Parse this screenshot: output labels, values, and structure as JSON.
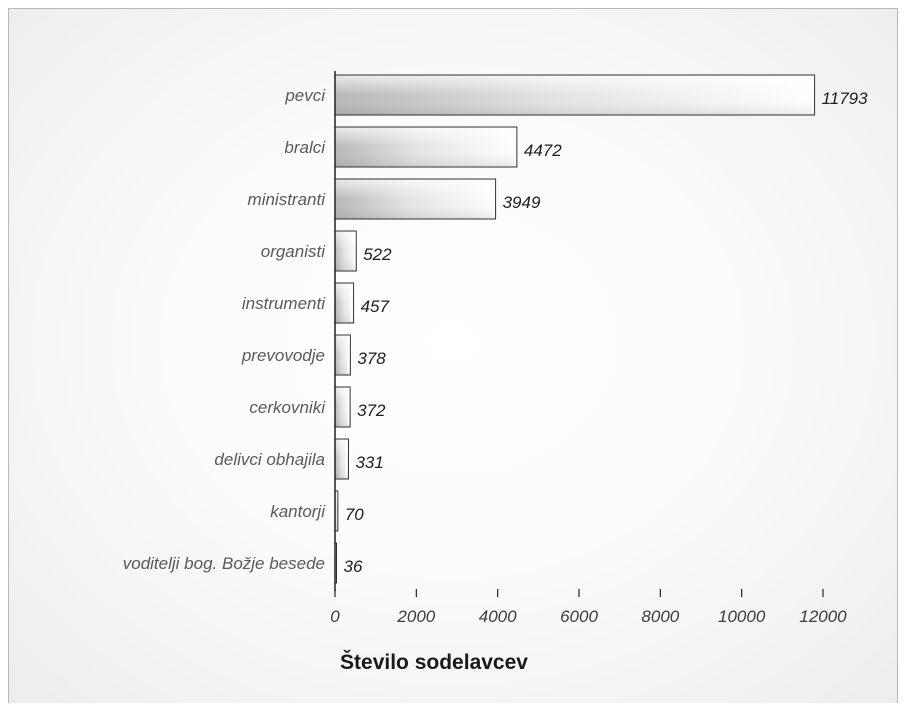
{
  "chart_data": {
    "type": "bar",
    "orientation": "horizontal",
    "categories": [
      "pevci",
      "bralci",
      "ministranti",
      "organisti",
      "instrumenti",
      "prevovodje",
      "cerkovniki",
      "delivci obhajila",
      "kantorji",
      "voditelji bog. Božje besede"
    ],
    "values": [
      11793,
      4472,
      3949,
      522,
      457,
      378,
      372,
      331,
      70,
      36
    ],
    "value_labels": [
      "11793",
      "4472",
      "3949",
      "522",
      "457",
      "378",
      "372",
      "331",
      "70",
      "36"
    ],
    "xlabel": "Število sodelavcev",
    "ylabel": "",
    "xlim": [
      0,
      12000
    ],
    "ticks": [
      0,
      2000,
      4000,
      6000,
      8000,
      10000,
      12000
    ],
    "tick_labels": [
      "0",
      "2000",
      "4000",
      "6000",
      "8000",
      "10000",
      "12000"
    ],
    "grid": false,
    "legend": "none",
    "bar_color": "#e6e6e6",
    "bar_edge_color": "#2f2f2f"
  }
}
